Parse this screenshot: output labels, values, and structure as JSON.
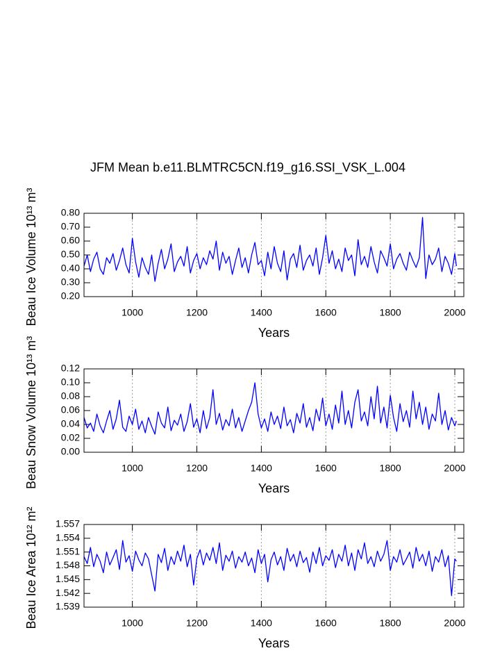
{
  "chart_data": [
    {
      "type": "line",
      "title": "JFM Mean b.e11.BLMTRC5CN.f19_g16.SSI_VSK_L.004",
      "ylabel": "Beau Ice Volume 10¹³ m³",
      "xlabel": "Years",
      "color": "#0000ff",
      "grid": true,
      "xlim": [
        850,
        2028
      ],
      "xticks": [
        1000,
        1200,
        1400,
        1600,
        1800,
        2000
      ],
      "ylim": [
        0.2,
        0.8
      ],
      "yticks": [
        {
          "value": 0.2,
          "label": "0.20"
        },
        {
          "value": 0.3,
          "label": "0.30"
        },
        {
          "value": 0.4,
          "label": "0.40"
        },
        {
          "value": 0.5,
          "label": "0.50"
        },
        {
          "value": 0.6,
          "label": "0.60"
        },
        {
          "value": 0.7,
          "label": "0.70"
        },
        {
          "value": 0.8,
          "label": "0.80"
        }
      ],
      "x": [
        850,
        860,
        870,
        880,
        890,
        900,
        910,
        920,
        930,
        940,
        950,
        960,
        970,
        980,
        990,
        1000,
        1010,
        1020,
        1030,
        1040,
        1050,
        1060,
        1070,
        1080,
        1090,
        1100,
        1110,
        1120,
        1130,
        1140,
        1150,
        1160,
        1170,
        1180,
        1190,
        1200,
        1210,
        1220,
        1230,
        1240,
        1250,
        1260,
        1270,
        1280,
        1290,
        1300,
        1310,
        1320,
        1330,
        1340,
        1350,
        1360,
        1370,
        1380,
        1390,
        1400,
        1410,
        1420,
        1430,
        1440,
        1450,
        1460,
        1470,
        1480,
        1490,
        1500,
        1510,
        1520,
        1530,
        1540,
        1550,
        1560,
        1570,
        1580,
        1590,
        1600,
        1610,
        1620,
        1630,
        1640,
        1650,
        1660,
        1670,
        1680,
        1690,
        1700,
        1710,
        1720,
        1730,
        1740,
        1750,
        1760,
        1770,
        1780,
        1790,
        1800,
        1810,
        1820,
        1830,
        1840,
        1850,
        1860,
        1870,
        1880,
        1890,
        1900,
        1910,
        1920,
        1930,
        1940,
        1950,
        1960,
        1970,
        1980,
        1990,
        2000,
        2005
      ],
      "values": [
        0.42,
        0.5,
        0.38,
        0.47,
        0.52,
        0.4,
        0.36,
        0.48,
        0.44,
        0.51,
        0.39,
        0.46,
        0.55,
        0.43,
        0.37,
        0.62,
        0.45,
        0.34,
        0.48,
        0.41,
        0.36,
        0.5,
        0.31,
        0.44,
        0.54,
        0.4,
        0.47,
        0.58,
        0.38,
        0.45,
        0.49,
        0.42,
        0.56,
        0.37,
        0.46,
        0.51,
        0.4,
        0.48,
        0.43,
        0.53,
        0.47,
        0.6,
        0.39,
        0.52,
        0.44,
        0.49,
        0.36,
        0.46,
        0.55,
        0.41,
        0.48,
        0.37,
        0.5,
        0.59,
        0.43,
        0.46,
        0.35,
        0.52,
        0.4,
        0.56,
        0.44,
        0.38,
        0.53,
        0.32,
        0.47,
        0.51,
        0.41,
        0.57,
        0.39,
        0.46,
        0.5,
        0.42,
        0.55,
        0.36,
        0.48,
        0.64,
        0.44,
        0.53,
        0.4,
        0.47,
        0.38,
        0.55,
        0.46,
        0.5,
        0.35,
        0.61,
        0.43,
        0.49,
        0.41,
        0.56,
        0.45,
        0.37,
        0.53,
        0.48,
        0.42,
        0.58,
        0.4,
        0.47,
        0.51,
        0.44,
        0.39,
        0.52,
        0.46,
        0.41,
        0.48,
        0.77,
        0.33,
        0.5,
        0.43,
        0.47,
        0.55,
        0.38,
        0.49,
        0.44,
        0.36,
        0.51,
        0.42
      ]
    },
    {
      "type": "line",
      "ylabel": "Beau Snow Volume 10¹³ m³",
      "xlabel": "Years",
      "color": "#0000ff",
      "grid": true,
      "xlim": [
        850,
        2028
      ],
      "xticks": [
        1000,
        1200,
        1400,
        1600,
        1800,
        2000
      ],
      "ylim": [
        0,
        0.12
      ],
      "yticks": [
        {
          "value": 0,
          "label": "0.00"
        },
        {
          "value": 0.02,
          "label": "0.02"
        },
        {
          "value": 0.04,
          "label": "0.04"
        },
        {
          "value": 0.06,
          "label": "0.06"
        },
        {
          "value": 0.08,
          "label": "0.08"
        },
        {
          "value": 0.1,
          "label": "0.10"
        },
        {
          "value": 0.12,
          "label": "0.12"
        }
      ],
      "x": [
        850,
        860,
        870,
        880,
        890,
        900,
        910,
        920,
        930,
        940,
        950,
        960,
        970,
        980,
        990,
        1000,
        1010,
        1020,
        1030,
        1040,
        1050,
        1060,
        1070,
        1080,
        1090,
        1100,
        1110,
        1120,
        1130,
        1140,
        1150,
        1160,
        1170,
        1180,
        1190,
        1200,
        1210,
        1220,
        1230,
        1240,
        1250,
        1260,
        1270,
        1280,
        1290,
        1300,
        1310,
        1320,
        1330,
        1340,
        1350,
        1360,
        1370,
        1380,
        1390,
        1400,
        1410,
        1420,
        1430,
        1440,
        1450,
        1460,
        1470,
        1480,
        1490,
        1500,
        1510,
        1520,
        1530,
        1540,
        1550,
        1560,
        1570,
        1580,
        1590,
        1600,
        1610,
        1620,
        1630,
        1640,
        1650,
        1660,
        1670,
        1680,
        1690,
        1700,
        1710,
        1720,
        1730,
        1740,
        1750,
        1760,
        1770,
        1780,
        1790,
        1800,
        1810,
        1820,
        1830,
        1840,
        1850,
        1860,
        1870,
        1880,
        1890,
        1900,
        1910,
        1920,
        1930,
        1940,
        1950,
        1960,
        1970,
        1980,
        1990,
        2000,
        2005
      ],
      "values": [
        0.05,
        0.035,
        0.042,
        0.03,
        0.055,
        0.038,
        0.028,
        0.045,
        0.06,
        0.033,
        0.048,
        0.075,
        0.036,
        0.03,
        0.052,
        0.04,
        0.062,
        0.033,
        0.045,
        0.028,
        0.05,
        0.037,
        0.026,
        0.058,
        0.042,
        0.035,
        0.065,
        0.031,
        0.046,
        0.039,
        0.055,
        0.03,
        0.044,
        0.07,
        0.036,
        0.048,
        0.028,
        0.06,
        0.034,
        0.05,
        0.09,
        0.04,
        0.056,
        0.032,
        0.047,
        0.038,
        0.062,
        0.035,
        0.05,
        0.03,
        0.045,
        0.06,
        0.072,
        0.1,
        0.055,
        0.035,
        0.048,
        0.03,
        0.058,
        0.04,
        0.052,
        0.034,
        0.065,
        0.038,
        0.047,
        0.028,
        0.056,
        0.042,
        0.07,
        0.036,
        0.05,
        0.031,
        0.062,
        0.045,
        0.078,
        0.038,
        0.055,
        0.033,
        0.068,
        0.042,
        0.088,
        0.04,
        0.06,
        0.035,
        0.072,
        0.09,
        0.045,
        0.058,
        0.038,
        0.08,
        0.048,
        0.095,
        0.042,
        0.065,
        0.035,
        0.082,
        0.05,
        0.03,
        0.07,
        0.044,
        0.06,
        0.036,
        0.088,
        0.048,
        0.072,
        0.04,
        0.065,
        0.033,
        0.055,
        0.045,
        0.085,
        0.04,
        0.06,
        0.032,
        0.05,
        0.038,
        0.045
      ]
    },
    {
      "type": "line",
      "ylabel": "Beau Ice Area 10¹² m²",
      "xlabel": "Years",
      "color": "#0000ff",
      "grid": true,
      "xlim": [
        850,
        2028
      ],
      "xticks": [
        1000,
        1200,
        1400,
        1600,
        1800,
        2000
      ],
      "ylim": [
        1.539,
        1.557
      ],
      "yticks": [
        1.539,
        1.542,
        1.545,
        1.548,
        1.551,
        1.554,
        1.557
      ],
      "x": [
        850,
        860,
        870,
        880,
        890,
        900,
        910,
        920,
        930,
        940,
        950,
        960,
        970,
        980,
        990,
        1000,
        1010,
        1020,
        1030,
        1040,
        1050,
        1060,
        1070,
        1080,
        1090,
        1100,
        1110,
        1120,
        1130,
        1140,
        1150,
        1160,
        1170,
        1180,
        1190,
        1200,
        1210,
        1220,
        1230,
        1240,
        1250,
        1260,
        1270,
        1280,
        1290,
        1300,
        1310,
        1320,
        1330,
        1340,
        1350,
        1360,
        1370,
        1380,
        1390,
        1400,
        1410,
        1420,
        1430,
        1440,
        1450,
        1460,
        1470,
        1480,
        1490,
        1500,
        1510,
        1520,
        1530,
        1540,
        1550,
        1560,
        1570,
        1580,
        1590,
        1600,
        1610,
        1620,
        1630,
        1640,
        1650,
        1660,
        1670,
        1680,
        1690,
        1700,
        1710,
        1720,
        1730,
        1740,
        1750,
        1760,
        1770,
        1780,
        1790,
        1800,
        1810,
        1820,
        1830,
        1840,
        1850,
        1860,
        1870,
        1880,
        1890,
        1900,
        1910,
        1920,
        1930,
        1940,
        1950,
        1960,
        1970,
        1980,
        1990,
        2000,
        2005
      ],
      "values": [
        1.55,
        1.5485,
        1.552,
        1.5478,
        1.5505,
        1.549,
        1.5465,
        1.551,
        1.5482,
        1.5498,
        1.5515,
        1.5472,
        1.5535,
        1.5488,
        1.5502,
        1.5468,
        1.5512,
        1.5493,
        1.548,
        1.5508,
        1.5495,
        1.546,
        1.5425,
        1.5505,
        1.5487,
        1.5518,
        1.547,
        1.55,
        1.5483,
        1.5512,
        1.549,
        1.5525,
        1.5478,
        1.5505,
        1.5438,
        1.5496,
        1.5515,
        1.5482,
        1.5508,
        1.5492,
        1.552,
        1.5485,
        1.553,
        1.547,
        1.5503,
        1.549,
        1.5512,
        1.5475,
        1.55,
        1.5488,
        1.551,
        1.548,
        1.5497,
        1.5465,
        1.5515,
        1.5485,
        1.5505,
        1.5445,
        1.5493,
        1.551,
        1.5482,
        1.55,
        1.547,
        1.5518,
        1.549,
        1.5505,
        1.5478,
        1.5512,
        1.5487,
        1.5498,
        1.5466,
        1.551,
        1.5485,
        1.552,
        1.548,
        1.5502,
        1.5492,
        1.5515,
        1.5476,
        1.5505,
        1.549,
        1.5525,
        1.548,
        1.5508,
        1.547,
        1.5515,
        1.5495,
        1.553,
        1.5485,
        1.55,
        1.5478,
        1.5512,
        1.549,
        1.5505,
        1.5535,
        1.547,
        1.55,
        1.5488,
        1.5515,
        1.5482,
        1.5495,
        1.551,
        1.5475,
        1.552,
        1.549,
        1.5505,
        1.548,
        1.5512,
        1.5468,
        1.55,
        1.5488,
        1.5515,
        1.5478,
        1.5502,
        1.5415,
        1.5495,
        1.549
      ]
    }
  ]
}
